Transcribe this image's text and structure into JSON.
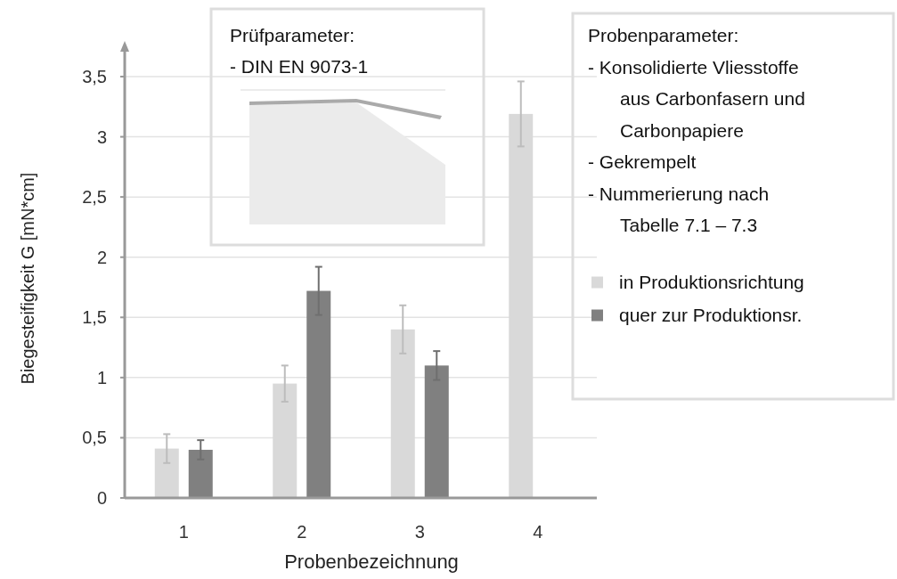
{
  "chart_data": {
    "type": "bar",
    "xlabel": "Probenbezeichnung",
    "ylabel": "Biegesteifigkeit G [mN*cm]",
    "categories": [
      "1",
      "2",
      "3",
      "4"
    ],
    "series": [
      {
        "name": "in Produktionsrichtung",
        "color": "#d9d9d9",
        "values": [
          0.41,
          0.95,
          1.4,
          3.19
        ],
        "errors": [
          0.12,
          0.15,
          0.2,
          0.27
        ]
      },
      {
        "name": "quer zur Produktionsr.",
        "color": "#808080",
        "values": [
          0.4,
          1.72,
          1.1,
          null
        ],
        "errors": [
          0.08,
          0.2,
          0.12,
          null
        ]
      }
    ],
    "ylim": [
      0,
      3.5
    ],
    "yticks": [
      0,
      {
        "value": 0.5,
        "label": "0,5"
      },
      1,
      {
        "value": 1.5,
        "label": "1,5"
      },
      2,
      {
        "value": 2.5,
        "label": "2,5"
      },
      3,
      {
        "value": 3.5,
        "label": "3,5"
      }
    ],
    "grid": "y",
    "legend": "right",
    "annotations": [
      "Prüfparameter:",
      "- DIN EN 9073-1",
      "Probenparameter:",
      "- Konsolidierte Vliesstoffe aus Carbonfasern und Carbonpapiere",
      "- Gekrempelt",
      "- Nummerierung nach Tabelle 7.1 – 7.3"
    ]
  }
}
